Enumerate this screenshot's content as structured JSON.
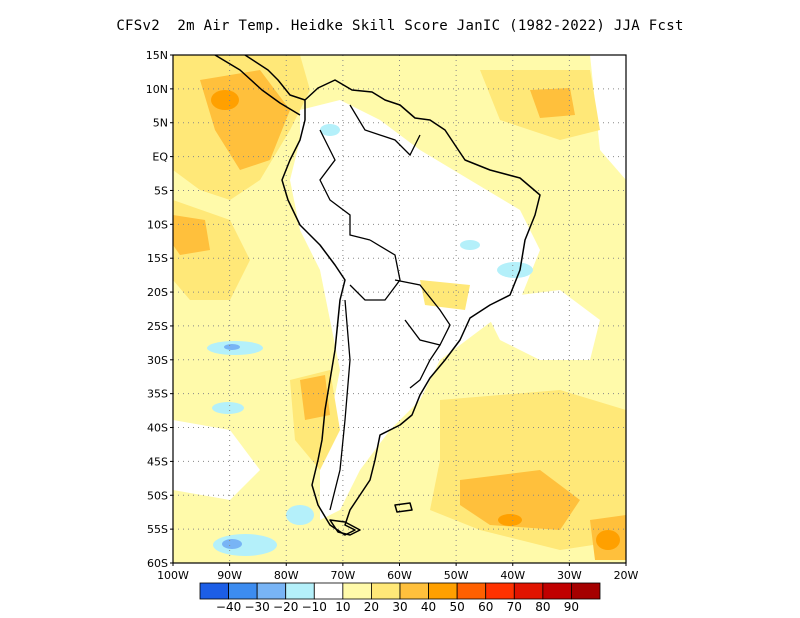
{
  "title": "CFSv2  2m Air Temp. Heidke Skill Score JanIC (1982-2022) JJA Fcst",
  "map": {
    "region": "South America",
    "lon_range": [
      -100,
      -20
    ],
    "lat_range": [
      -60,
      15
    ],
    "lat_tick_labels": [
      "15N",
      "10N",
      "5N",
      "EQ",
      "5S",
      "10S",
      "15S",
      "20S",
      "25S",
      "30S",
      "35S",
      "40S",
      "45S",
      "50S",
      "55S",
      "60S"
    ],
    "lon_tick_labels": [
      "100W",
      "90W",
      "80W",
      "70W",
      "60W",
      "50W",
      "40W",
      "30W",
      "20W"
    ],
    "grid": "dotted, every 5 degrees",
    "coastline_color": "#000000"
  },
  "colorbar": {
    "labels": [
      "-40",
      "-30",
      "-20",
      "-10",
      "10",
      "20",
      "30",
      "40",
      "50",
      "60",
      "70",
      "80",
      "90"
    ],
    "colors": [
      "#1c5ee6",
      "#3c8cf0",
      "#78b4f5",
      "#b4f0fa",
      "#ffffff",
      "#fffaaa",
      "#ffe878",
      "#ffc03c",
      "#ffa000",
      "#ff6000",
      "#ff3200",
      "#e11400",
      "#c00000",
      "#a50000"
    ]
  }
}
